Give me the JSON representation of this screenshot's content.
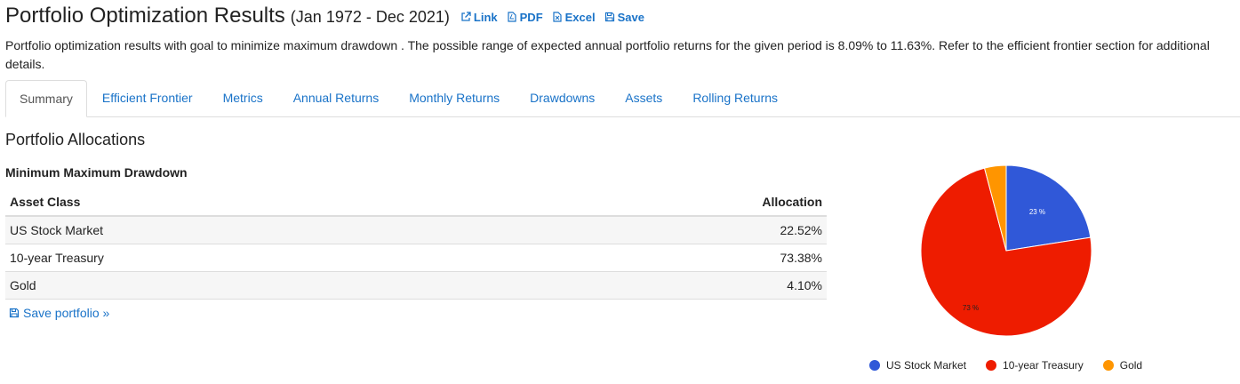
{
  "header": {
    "title": "Portfolio Optimization Results",
    "period": "(Jan 1972 - Dec 2021)",
    "links": [
      {
        "label": "Link",
        "icon": "external-link-icon"
      },
      {
        "label": "PDF",
        "icon": "pdf-file-icon"
      },
      {
        "label": "Excel",
        "icon": "excel-file-icon"
      },
      {
        "label": "Save",
        "icon": "floppy-disk-icon"
      }
    ]
  },
  "description": "Portfolio optimization results with goal to minimize maximum drawdown . The possible range of expected annual portfolio returns for the given period is 8.09% to 11.63%. Refer to the efficient frontier section for additional details.",
  "tabs": [
    "Summary",
    "Efficient Frontier",
    "Metrics",
    "Annual Returns",
    "Monthly Returns",
    "Drawdowns",
    "Assets",
    "Rolling Returns"
  ],
  "active_tab": "Summary",
  "section_title": "Portfolio Allocations",
  "subsection_title": "Minimum Maximum Drawdown",
  "table": {
    "headers": [
      "Asset Class",
      "Allocation"
    ],
    "rows": [
      {
        "asset": "US Stock Market",
        "allocation": "22.52%"
      },
      {
        "asset": "10-year Treasury",
        "allocation": "73.38%"
      },
      {
        "asset": "Gold",
        "allocation": "4.10%"
      }
    ]
  },
  "save_portfolio_label": "Save portfolio »",
  "colors": {
    "link": "#1a73c8",
    "us_stock": "#3058d8",
    "treasury": "#ee1c00",
    "gold": "#ff9500"
  },
  "chart_data": {
    "type": "pie",
    "slices": [
      {
        "name": "US Stock Market",
        "value": 22.52,
        "label": "23 %",
        "color": "#3058d8"
      },
      {
        "name": "10-year Treasury",
        "value": 73.38,
        "label": "73 %",
        "color": "#ee1c00"
      },
      {
        "name": "Gold",
        "value": 4.1,
        "label": "",
        "color": "#ff9500"
      }
    ],
    "legend_position": "bottom"
  }
}
